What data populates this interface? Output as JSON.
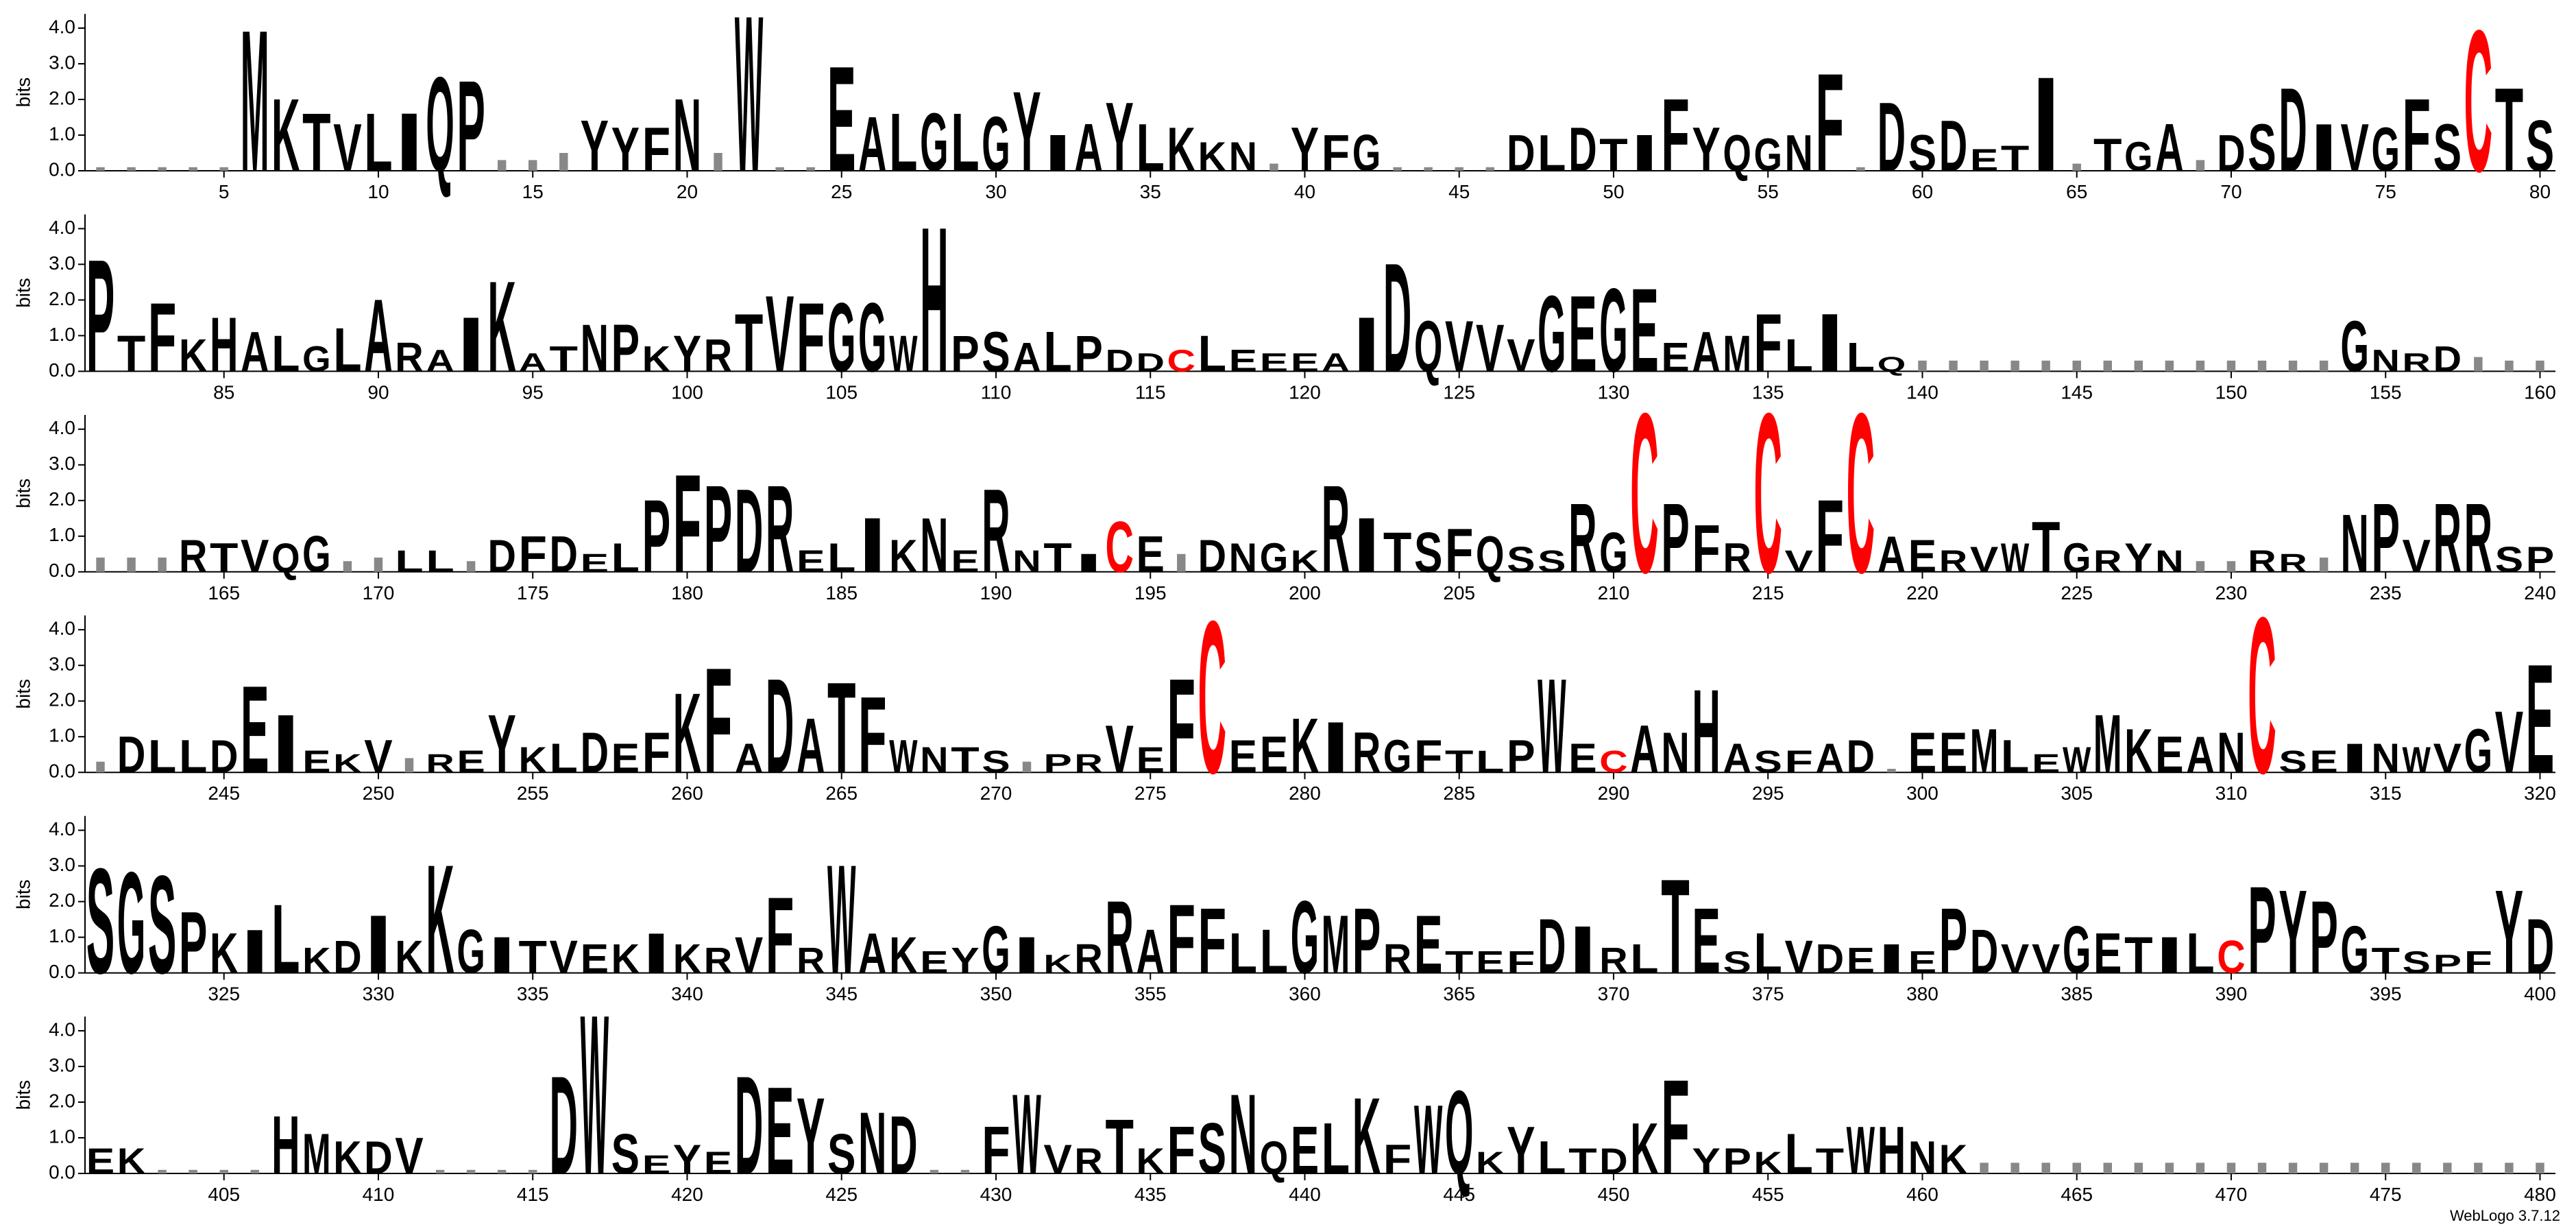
{
  "chart_data": [
    {
      "type": "logo",
      "y_label": "bits",
      "xlim": [
        0.5,
        80.5
      ],
      "xticks": [
        5,
        10,
        15,
        20,
        25,
        30,
        35,
        40,
        45,
        50,
        55,
        60,
        65,
        70,
        75,
        80
      ],
      "ylim": [
        0,
        4.4
      ],
      "yticks": [
        {
          "value": 0,
          "label": "0.0"
        },
        {
          "value": 1,
          "label": "1.0"
        },
        {
          "value": 2,
          "label": "2.0"
        },
        {
          "value": 3,
          "label": "3.0"
        },
        {
          "value": 4,
          "label": "4.0"
        }
      ],
      "color": "#000000",
      "highlight": {
        "letter": "C",
        "color": "#ff0000"
      },
      "letters": [
        null,
        null,
        null,
        null,
        null,
        "M",
        "K",
        "T",
        "V",
        "L",
        "I",
        "Q",
        "P",
        null,
        null,
        null,
        "Y",
        "Y",
        "F",
        "N",
        null,
        "W",
        null,
        null,
        "E",
        "A",
        "L",
        "G",
        "L",
        "G",
        "Y",
        "I",
        "A",
        "Y",
        "L",
        "K",
        "K",
        "N",
        null,
        "Y",
        "F",
        "G",
        null,
        null,
        null,
        null,
        "D",
        "L",
        "D",
        "T",
        "I",
        "F",
        "Y",
        "Q",
        "G",
        "N",
        "F",
        null,
        "D",
        "S",
        "D",
        "E",
        "T",
        "I",
        null,
        "T",
        "G",
        "A",
        null,
        "D",
        "S",
        "D",
        "I",
        "V",
        "G",
        "F",
        "S",
        "C",
        "T",
        "S"
      ],
      "values": [
        0.1,
        0.1,
        0.1,
        0.1,
        0.1,
        3.9,
        2.0,
        1.6,
        1.3,
        1.6,
        1.6,
        2.6,
        2.5,
        0.3,
        0.3,
        0.5,
        1.4,
        1.2,
        1.2,
        2.0,
        0.5,
        4.3,
        0.1,
        0.1,
        2.9,
        1.5,
        1.6,
        1.6,
        1.6,
        1.5,
        2.2,
        1.0,
        1.3,
        1.9,
        1.3,
        1.2,
        0.8,
        0.8,
        0.2,
        1.2,
        1.0,
        1.0,
        0.1,
        0.1,
        0.1,
        0.1,
        1.0,
        1.0,
        1.2,
        0.9,
        1.0,
        2.0,
        1.2,
        1.0,
        0.9,
        1.0,
        2.7,
        0.1,
        1.9,
        1.0,
        1.4,
        0.6,
        0.7,
        2.6,
        0.2,
        0.9,
        0.8,
        1.3,
        0.3,
        1.0,
        1.3,
        2.3,
        1.3,
        1.3,
        1.2,
        2.0,
        1.3,
        3.9,
        2.3,
        1.4
      ]
    },
    {
      "type": "logo",
      "y_label": "bits",
      "xlim": [
        80.5,
        160.5
      ],
      "xticks": [
        85,
        90,
        95,
        100,
        105,
        110,
        115,
        120,
        125,
        130,
        135,
        140,
        145,
        150,
        155,
        160
      ],
      "ylim": [
        0,
        4.4
      ],
      "yticks": [
        {
          "value": 0,
          "label": "0.0"
        },
        {
          "value": 1,
          "label": "1.0"
        },
        {
          "value": 2,
          "label": "2.0"
        },
        {
          "value": 3,
          "label": "3.0"
        },
        {
          "value": 4,
          "label": "4.0"
        }
      ],
      "color": "#000000",
      "highlight": {
        "letter": "C",
        "color": "#ff0000"
      },
      "letters": [
        "P",
        "T",
        "F",
        "K",
        "H",
        "A",
        "L",
        "G",
        "L",
        "A",
        "R",
        "A",
        "I",
        "K",
        "A",
        "T",
        "N",
        "P",
        "K",
        "Y",
        "R",
        "T",
        "V",
        "F",
        "G",
        "G",
        "W",
        "H",
        "P",
        "S",
        "A",
        "L",
        "P",
        "D",
        "D",
        "C",
        "L",
        "E",
        "E",
        "E",
        "A",
        "I",
        "D",
        "Q",
        "V",
        "V",
        "V",
        "G",
        "E",
        "G",
        "E",
        "E",
        "A",
        "M",
        "F",
        "L",
        "I",
        "L",
        "Q",
        null,
        null,
        null,
        null,
        null,
        null,
        null,
        null,
        null,
        null,
        null,
        null,
        null,
        null,
        "G",
        "N",
        "R",
        "D",
        null,
        null,
        null
      ],
      "values": [
        3.1,
        1.0,
        1.9,
        0.9,
        1.5,
        1.1,
        1.0,
        0.7,
        1.2,
        2.0,
        0.8,
        0.6,
        1.5,
        2.5,
        0.5,
        0.7,
        1.3,
        1.3,
        0.7,
        1.0,
        0.9,
        1.6,
        2.1,
        1.9,
        1.9,
        1.9,
        1.0,
        4.0,
        1.0,
        1.1,
        0.8,
        1.1,
        1.0,
        0.6,
        0.5,
        0.6,
        1.0,
        0.6,
        0.5,
        0.5,
        0.5,
        1.5,
        3.0,
        1.4,
        1.4,
        1.3,
        0.9,
        2.1,
        2.1,
        2.3,
        2.3,
        0.8,
        1.1,
        1.0,
        1.6,
        0.9,
        1.6,
        0.8,
        0.4,
        0.3,
        0.3,
        0.3,
        0.3,
        0.3,
        0.3,
        0.3,
        0.3,
        0.3,
        0.3,
        0.3,
        0.3,
        0.3,
        0.3,
        1.4,
        0.6,
        0.5,
        0.7,
        0.4,
        0.3,
        0.3
      ]
    },
    {
      "type": "logo",
      "y_label": "bits",
      "xlim": [
        160.5,
        240.5
      ],
      "xticks": [
        165,
        170,
        175,
        180,
        185,
        190,
        195,
        200,
        205,
        210,
        215,
        220,
        225,
        230,
        235,
        240
      ],
      "ylim": [
        0,
        4.4
      ],
      "yticks": [
        {
          "value": 0,
          "label": "0.0"
        },
        {
          "value": 1,
          "label": "1.0"
        },
        {
          "value": 2,
          "label": "2.0"
        },
        {
          "value": 3,
          "label": "3.0"
        },
        {
          "value": 4,
          "label": "4.0"
        }
      ],
      "color": "#000000",
      "highlight": {
        "letter": "C",
        "color": "#ff0000"
      },
      "letters": [
        null,
        null,
        null,
        "R",
        "T",
        "V",
        "Q",
        "G",
        null,
        null,
        "L",
        "L",
        null,
        "D",
        "F",
        "D",
        "E",
        "L",
        "P",
        "F",
        "P",
        "D",
        "R",
        "E",
        "L",
        "I",
        "K",
        "N",
        "E",
        "R",
        "N",
        "T",
        "I",
        "C",
        "E",
        null,
        "D",
        "N",
        "G",
        "K",
        "R",
        "I",
        "T",
        "S",
        "F",
        "Q",
        "S",
        "S",
        "R",
        "G",
        "C",
        "P",
        "F",
        "R",
        "C",
        "V",
        "F",
        "C",
        "A",
        "E",
        "R",
        "V",
        "W",
        "T",
        "G",
        "R",
        "Y",
        "N",
        null,
        null,
        "R",
        "R",
        null,
        "N",
        "P",
        "V",
        "R",
        "R",
        "S",
        "P"
      ],
      "values": [
        0.4,
        0.4,
        0.4,
        0.9,
        0.8,
        0.9,
        0.8,
        1.0,
        0.3,
        0.4,
        0.6,
        0.6,
        0.3,
        0.9,
        1.0,
        1.0,
        0.5,
        0.8,
        2.0,
        2.7,
        2.4,
        2.3,
        2.4,
        0.6,
        0.8,
        1.5,
        0.9,
        1.5,
        0.6,
        2.3,
        0.6,
        0.8,
        0.5,
        1.4,
        1.0,
        0.5,
        0.9,
        0.8,
        0.8,
        0.6,
        2.4,
        1.5,
        1.1,
        1.1,
        1.2,
        1.0,
        0.7,
        0.6,
        1.9,
        1.1,
        4.4,
        1.9,
        1.3,
        0.8,
        4.4,
        0.6,
        2.0,
        4.4,
        1.0,
        0.9,
        0.6,
        0.7,
        0.8,
        1.4,
        0.8,
        0.6,
        0.8,
        0.6,
        0.3,
        0.3,
        0.6,
        0.5,
        0.4,
        1.6,
        1.9,
        0.9,
        1.9,
        1.9,
        0.7,
        0.7
      ]
    },
    {
      "type": "logo",
      "y_label": "bits",
      "xlim": [
        240.5,
        320.5
      ],
      "xticks": [
        245,
        250,
        255,
        260,
        265,
        270,
        275,
        280,
        285,
        290,
        295,
        300,
        305,
        310,
        315,
        320
      ],
      "ylim": [
        0,
        4.4
      ],
      "yticks": [
        {
          "value": 0,
          "label": "0.0"
        },
        {
          "value": 1,
          "label": "1.0"
        },
        {
          "value": 2,
          "label": "2.0"
        },
        {
          "value": 3,
          "label": "3.0"
        },
        {
          "value": 4,
          "label": "4.0"
        }
      ],
      "color": "#000000",
      "highlight": {
        "letter": "C",
        "color": "#ff0000"
      },
      "letters": [
        null,
        "D",
        "L",
        "L",
        "D",
        "E",
        "I",
        "E",
        "K",
        "V",
        null,
        "R",
        "E",
        "Y",
        "K",
        "L",
        "D",
        "E",
        "F",
        "K",
        "F",
        "A",
        "D",
        "A",
        "T",
        "F",
        "W",
        "N",
        "T",
        "S",
        null,
        "P",
        "R",
        "V",
        "E",
        "F",
        "C",
        "E",
        "E",
        "K",
        "I",
        "R",
        "G",
        "F",
        "T",
        "L",
        "P",
        "W",
        "E",
        "C",
        "A",
        "N",
        "H",
        "A",
        "S",
        "F",
        "A",
        "D",
        null,
        "E",
        "E",
        "M",
        "L",
        "E",
        "W",
        "M",
        "K",
        "E",
        "A",
        "N",
        "C",
        "S",
        "E",
        "I",
        "N",
        "W",
        "V",
        "G",
        "V",
        "E"
      ],
      "values": [
        0.3,
        1.0,
        0.9,
        0.9,
        0.9,
        2.4,
        1.6,
        0.6,
        0.5,
        0.9,
        0.4,
        0.5,
        0.6,
        1.6,
        0.7,
        0.8,
        1.1,
        0.8,
        1.1,
        2.2,
        2.9,
        0.8,
        2.6,
        1.5,
        2.5,
        2.1,
        0.9,
        0.7,
        0.7,
        0.6,
        0.3,
        0.5,
        0.5,
        1.3,
        0.7,
        2.6,
        4.2,
        0.9,
        1.0,
        1.5,
        1.4,
        1.1,
        0.9,
        0.9,
        0.6,
        0.6,
        0.9,
        2.6,
        0.8,
        0.6,
        1.3,
        1.1,
        2.3,
        0.8,
        0.6,
        0.6,
        0.8,
        0.9,
        0.1,
        1.1,
        1.1,
        1.2,
        0.9,
        0.5,
        0.7,
        1.6,
        1.2,
        1.0,
        1.0,
        1.1,
        4.3,
        0.6,
        0.6,
        0.8,
        0.8,
        0.7,
        0.8,
        1.2,
        1.7,
        3.0
      ]
    },
    {
      "type": "logo",
      "y_label": "bits",
      "xlim": [
        320.5,
        400.5
      ],
      "xticks": [
        325,
        330,
        335,
        340,
        345,
        350,
        355,
        360,
        365,
        370,
        375,
        380,
        385,
        390,
        395,
        400
      ],
      "ylim": [
        0,
        4.4
      ],
      "yticks": [
        {
          "value": 0,
          "label": "0.0"
        },
        {
          "value": 1,
          "label": "1.0"
        },
        {
          "value": 2,
          "label": "2.0"
        },
        {
          "value": 3,
          "label": "3.0"
        },
        {
          "value": 4,
          "label": "4.0"
        }
      ],
      "color": "#000000",
      "highlight": {
        "letter": "C",
        "color": "#ff0000"
      },
      "letters": [
        "S",
        "G",
        "S",
        "P",
        "K",
        "I",
        "L",
        "K",
        "D",
        "I",
        "K",
        "K",
        "G",
        "I",
        "T",
        "V",
        "E",
        "K",
        "I",
        "K",
        "R",
        "V",
        "F",
        "R",
        "W",
        "A",
        "K",
        "E",
        "Y",
        "G",
        "I",
        "K",
        "R",
        "R",
        "A",
        "F",
        "F",
        "L",
        "L",
        "G",
        "M",
        "P",
        "R",
        "E",
        "T",
        "E",
        "F",
        "D",
        "I",
        "R",
        "L",
        "T",
        "E",
        "S",
        "L",
        "V",
        "D",
        "E",
        "I",
        "E",
        "P",
        "D",
        "V",
        "V",
        "G",
        "E",
        "T",
        "I",
        "L",
        "C",
        "P",
        "Y",
        "P",
        "G",
        "T",
        "S",
        "P",
        "F",
        "Y",
        "D"
      ],
      "values": [
        2.9,
        2.8,
        2.7,
        1.7,
        1.1,
        1.2,
        1.9,
        0.7,
        0.9,
        1.6,
        0.9,
        3.0,
        1.2,
        1.0,
        0.9,
        0.9,
        0.8,
        0.8,
        1.1,
        0.8,
        0.7,
        1.0,
        2.1,
        0.7,
        3.0,
        1.1,
        1.0,
        0.6,
        0.7,
        1.3,
        1.0,
        0.5,
        0.8,
        2.0,
        1.2,
        1.9,
        1.8,
        1.1,
        1.2,
        2.0,
        1.6,
        1.8,
        0.8,
        1.6,
        0.6,
        0.6,
        0.6,
        1.5,
        1.3,
        0.7,
        0.8,
        2.6,
        1.8,
        0.6,
        1.1,
        0.9,
        0.8,
        0.7,
        0.8,
        0.6,
        1.8,
        1.2,
        0.8,
        0.8,
        1.3,
        1.1,
        1.0,
        1.0,
        1.1,
        0.9,
        2.4,
        2.3,
        2.0,
        1.3,
        0.7,
        0.6,
        0.5,
        0.6,
        2.3,
        1.5
      ]
    },
    {
      "type": "logo",
      "y_label": "bits",
      "xlim": [
        400.5,
        480.5
      ],
      "xticks": [
        405,
        410,
        415,
        420,
        425,
        430,
        435,
        440,
        445,
        450,
        455,
        460,
        465,
        470,
        475,
        480
      ],
      "ylim": [
        0,
        4.4
      ],
      "yticks": [
        {
          "value": 0,
          "label": "0.0"
        },
        {
          "value": 1,
          "label": "1.0"
        },
        {
          "value": 2,
          "label": "2.0"
        },
        {
          "value": 3,
          "label": "3.0"
        },
        {
          "value": 4,
          "label": "4.0"
        }
      ],
      "color": "#000000",
      "highlight": {
        "letter": "C",
        "color": "#ff0000"
      },
      "letters": [
        "E",
        "K",
        null,
        null,
        null,
        null,
        "H",
        "M",
        "K",
        "D",
        "V",
        null,
        null,
        null,
        null,
        "D",
        "W",
        "S",
        "E",
        "Y",
        "E",
        "D",
        "E",
        "Y",
        "S",
        "N",
        "D",
        null,
        null,
        "F",
        "W",
        "V",
        "R",
        "T",
        "K",
        "F",
        "S",
        "N",
        "Q",
        "E",
        "L",
        "K",
        "F",
        "W",
        "Q",
        "K",
        "Y",
        "L",
        "T",
        "D",
        "K",
        "F",
        "Y",
        "P",
        "K",
        "L",
        "T",
        "W",
        "H",
        "N",
        "K",
        null,
        null,
        null,
        null,
        null,
        null,
        null,
        null,
        null,
        null,
        null,
        null,
        null,
        null,
        null,
        null,
        null,
        null,
        null
      ],
      "values": [
        0.7,
        0.7,
        0.1,
        0.1,
        0.1,
        0.1,
        1.6,
        1.1,
        0.9,
        0.9,
        1.0,
        0.1,
        0.1,
        0.1,
        0.1,
        2.7,
        4.4,
        1.1,
        0.5,
        0.8,
        0.6,
        2.7,
        2.4,
        2.1,
        1.1,
        1.7,
        1.6,
        0.1,
        0.1,
        1.3,
        2.2,
        0.8,
        0.7,
        1.5,
        0.7,
        1.3,
        1.4,
        2.2,
        0.9,
        1.3,
        1.4,
        2.1,
        0.8,
        1.9,
        2.3,
        0.6,
        1.3,
        0.9,
        0.7,
        0.7,
        1.4,
        2.6,
        0.7,
        0.7,
        0.6,
        1.1,
        0.7,
        1.3,
        1.3,
        0.9,
        0.8,
        0.3,
        0.3,
        0.3,
        0.3,
        0.3,
        0.3,
        0.3,
        0.3,
        0.3,
        0.3,
        0.3,
        0.3,
        0.3,
        0.3,
        0.3,
        0.3,
        0.3,
        0.3,
        0.3
      ]
    }
  ],
  "footer": "WebLogo 3.7.12"
}
